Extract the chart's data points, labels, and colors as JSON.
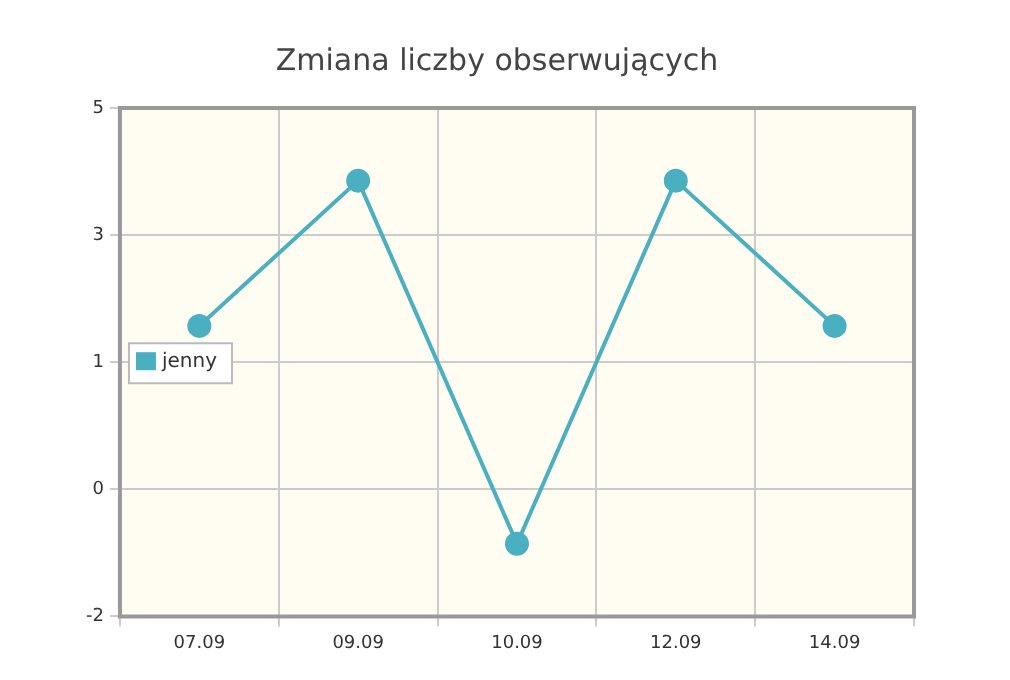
{
  "chart_data": {
    "type": "line",
    "title": "Zmiana liczby obserwujących",
    "categories": [
      "07.09",
      "09.09",
      "10.09",
      "12.09",
      "14.09"
    ],
    "series": [
      {
        "name": "jenny",
        "color": "#4ab0c1",
        "values": [
          2,
          4,
          -1,
          4,
          2
        ]
      }
    ],
    "ylim": [
      -2,
      5
    ],
    "yticks": [
      -2,
      {
        "value": -0.25,
        "label": "0"
      },
      {
        "value": 1.5,
        "label": "1"
      },
      {
        "value": 3.25,
        "label": "3"
      },
      5
    ],
    "grid": true,
    "legend": "left",
    "marker": "circle"
  }
}
